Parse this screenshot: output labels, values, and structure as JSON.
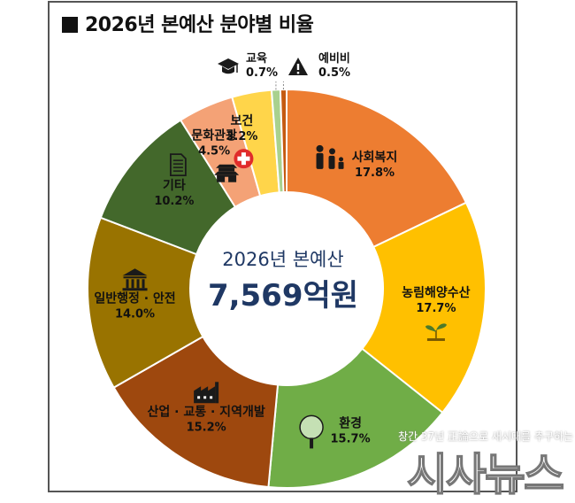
{
  "chart_data": {
    "type": "pie",
    "title": "2026년 본예산 분야별 비율",
    "center_label": "2026년 본예산",
    "center_value": "7,569억원",
    "unit": "%",
    "slices": [
      {
        "name": "사회복지",
        "label": "17.8%",
        "value": 17.8,
        "color": "#ED7D31",
        "icon": "family-icon"
      },
      {
        "name": "농림해양수산",
        "label": "17.7%",
        "value": 17.7,
        "color": "#FFC000",
        "icon": "sprout-icon"
      },
      {
        "name": "환경",
        "label": "15.7%",
        "value": 15.7,
        "color": "#70AD47",
        "icon": "tree-icon"
      },
      {
        "name": "산업 · 교통 · 지역개발",
        "label": "15.2%",
        "value": 15.2,
        "color": "#9E480E",
        "icon": "factory-icon"
      },
      {
        "name": "일반행정 · 안전",
        "label": "14.0%",
        "value": 14.0,
        "color": "#997300",
        "icon": "government-building-icon"
      },
      {
        "name": "기타",
        "label": "10.2%",
        "value": 10.2,
        "color": "#43682B",
        "icon": "document-icon"
      },
      {
        "name": "문화관광",
        "label": "4.5%",
        "value": 4.5,
        "color": "#F4A276",
        "icon": "pagoda-icon"
      },
      {
        "name": "보건",
        "label": "3.2%",
        "value": 3.2,
        "color": "#FFD54A",
        "icon": "medical-cross-icon"
      },
      {
        "name": "교육",
        "label": "0.7%",
        "value": 0.7,
        "color": "#A9D18E",
        "icon": "graduation-cap-icon"
      },
      {
        "name": "예비비",
        "label": "0.5%",
        "value": 0.5,
        "color": "#C55A11",
        "icon": "warning-icon"
      }
    ]
  },
  "watermark": {
    "tagline": "창간 37년 正論으로 새시대를 추구하는",
    "brand": "시사뉴스"
  }
}
